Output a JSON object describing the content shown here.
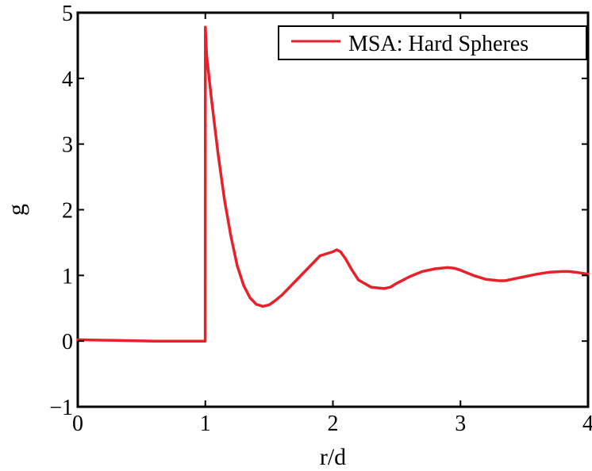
{
  "chart_data": {
    "type": "line",
    "title": "",
    "xlabel": "r/d",
    "ylabel": "g",
    "xlim": [
      0,
      4
    ],
    "ylim": [
      -1,
      5
    ],
    "xticks": [
      0,
      1,
      2,
      3,
      4
    ],
    "yticks": [
      -1,
      0,
      1,
      2,
      3,
      4,
      5
    ],
    "grid": false,
    "legend_position": "top-right",
    "series": [
      {
        "name": "MSA: Hard Spheres",
        "color": "#e8202a",
        "x": [
          0,
          0.3,
          0.6,
          0.8,
          0.999,
          1.0,
          1.01,
          1.05,
          1.1,
          1.15,
          1.2,
          1.25,
          1.3,
          1.35,
          1.4,
          1.45,
          1.5,
          1.55,
          1.6,
          1.7,
          1.8,
          1.9,
          2.0,
          2.03,
          2.06,
          2.1,
          2.15,
          2.2,
          2.3,
          2.4,
          2.45,
          2.5,
          2.6,
          2.7,
          2.8,
          2.9,
          2.95,
          3.0,
          3.1,
          3.2,
          3.3,
          3.35,
          3.4,
          3.5,
          3.6,
          3.7,
          3.8,
          3.85,
          3.9,
          4.0
        ],
        "values": [
          0.02,
          0.01,
          0.0,
          0.0,
          0.0,
          4.78,
          4.35,
          3.65,
          2.85,
          2.15,
          1.6,
          1.15,
          0.85,
          0.66,
          0.56,
          0.53,
          0.55,
          0.62,
          0.7,
          0.9,
          1.1,
          1.3,
          1.36,
          1.39,
          1.36,
          1.25,
          1.08,
          0.93,
          0.82,
          0.8,
          0.82,
          0.88,
          0.98,
          1.06,
          1.1,
          1.12,
          1.11,
          1.08,
          1.0,
          0.94,
          0.92,
          0.92,
          0.94,
          0.98,
          1.02,
          1.05,
          1.06,
          1.06,
          1.05,
          1.02
        ]
      }
    ]
  }
}
